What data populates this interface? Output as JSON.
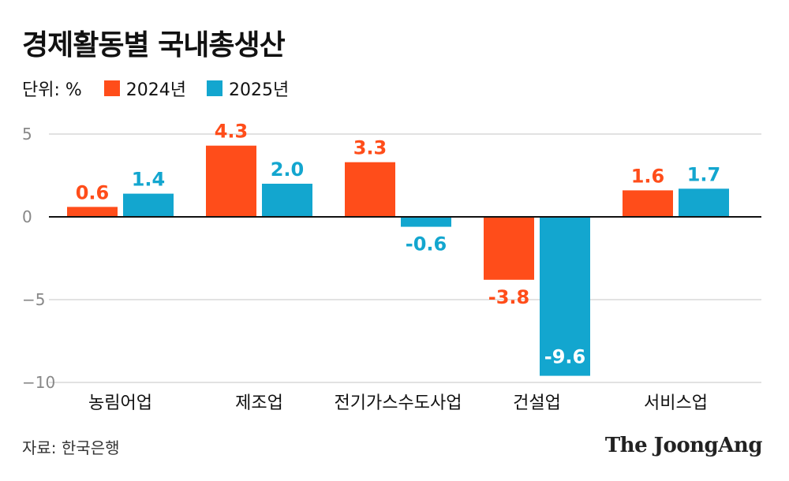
{
  "title": "경제활동별 국내총생산",
  "unit_label": "단위: %",
  "source": "자료: 한국은행",
  "brand": "The JoongAng",
  "colors": {
    "series_2024": "#ff4d1a",
    "series_2025": "#13a6cf",
    "grid": "#d9d9d9",
    "axis": "#111111",
    "tick": "#888888"
  },
  "chart_data": {
    "type": "bar",
    "title": "경제활동별 국내총생산",
    "xlabel": "",
    "ylabel": "",
    "ylim": [
      -10,
      5
    ],
    "yticks": [
      5,
      0,
      -5,
      -10
    ],
    "categories": [
      "농림어업",
      "제조업",
      "전기가스수도사업",
      "건설업",
      "서비스업"
    ],
    "series": [
      {
        "name": "2024년",
        "color": "#ff4d1a",
        "values": [
          0.6,
          4.3,
          3.3,
          -3.8,
          1.6
        ],
        "labels": [
          "0.6",
          "4.3",
          "3.3",
          "-3.8",
          "1.6"
        ]
      },
      {
        "name": "2025년",
        "color": "#13a6cf",
        "values": [
          1.4,
          2.0,
          -0.6,
          -9.6,
          1.7
        ],
        "labels": [
          "1.4",
          "2.0",
          "-0.6",
          "-9.6",
          "1.7"
        ]
      }
    ],
    "legend_position": "top-left",
    "grid": true
  }
}
